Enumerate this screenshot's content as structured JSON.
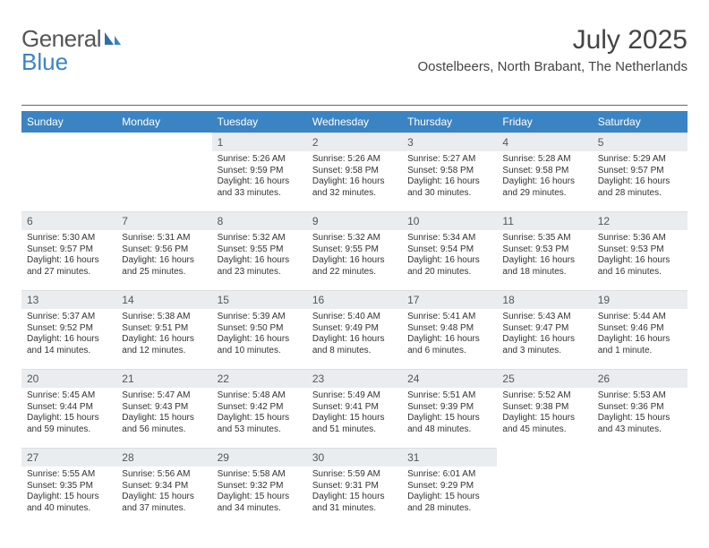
{
  "logo": {
    "word1": "General",
    "word2": "Blue"
  },
  "title": "July 2025",
  "location": "Oostelbeers, North Brabant, The Netherlands",
  "colors": {
    "header_bg": "#3b84c4",
    "daynum_bg": "#e9edf0",
    "text": "#333333",
    "rule": "#666666"
  },
  "weekdays": [
    "Sunday",
    "Monday",
    "Tuesday",
    "Wednesday",
    "Thursday",
    "Friday",
    "Saturday"
  ],
  "weeks": [
    [
      {
        "n": "",
        "sr": "",
        "ss": "",
        "dl": ""
      },
      {
        "n": "",
        "sr": "",
        "ss": "",
        "dl": ""
      },
      {
        "n": "1",
        "sr": "Sunrise: 5:26 AM",
        "ss": "Sunset: 9:59 PM",
        "dl": "Daylight: 16 hours and 33 minutes."
      },
      {
        "n": "2",
        "sr": "Sunrise: 5:26 AM",
        "ss": "Sunset: 9:58 PM",
        "dl": "Daylight: 16 hours and 32 minutes."
      },
      {
        "n": "3",
        "sr": "Sunrise: 5:27 AM",
        "ss": "Sunset: 9:58 PM",
        "dl": "Daylight: 16 hours and 30 minutes."
      },
      {
        "n": "4",
        "sr": "Sunrise: 5:28 AM",
        "ss": "Sunset: 9:58 PM",
        "dl": "Daylight: 16 hours and 29 minutes."
      },
      {
        "n": "5",
        "sr": "Sunrise: 5:29 AM",
        "ss": "Sunset: 9:57 PM",
        "dl": "Daylight: 16 hours and 28 minutes."
      }
    ],
    [
      {
        "n": "6",
        "sr": "Sunrise: 5:30 AM",
        "ss": "Sunset: 9:57 PM",
        "dl": "Daylight: 16 hours and 27 minutes."
      },
      {
        "n": "7",
        "sr": "Sunrise: 5:31 AM",
        "ss": "Sunset: 9:56 PM",
        "dl": "Daylight: 16 hours and 25 minutes."
      },
      {
        "n": "8",
        "sr": "Sunrise: 5:32 AM",
        "ss": "Sunset: 9:55 PM",
        "dl": "Daylight: 16 hours and 23 minutes."
      },
      {
        "n": "9",
        "sr": "Sunrise: 5:32 AM",
        "ss": "Sunset: 9:55 PM",
        "dl": "Daylight: 16 hours and 22 minutes."
      },
      {
        "n": "10",
        "sr": "Sunrise: 5:34 AM",
        "ss": "Sunset: 9:54 PM",
        "dl": "Daylight: 16 hours and 20 minutes."
      },
      {
        "n": "11",
        "sr": "Sunrise: 5:35 AM",
        "ss": "Sunset: 9:53 PM",
        "dl": "Daylight: 16 hours and 18 minutes."
      },
      {
        "n": "12",
        "sr": "Sunrise: 5:36 AM",
        "ss": "Sunset: 9:53 PM",
        "dl": "Daylight: 16 hours and 16 minutes."
      }
    ],
    [
      {
        "n": "13",
        "sr": "Sunrise: 5:37 AM",
        "ss": "Sunset: 9:52 PM",
        "dl": "Daylight: 16 hours and 14 minutes."
      },
      {
        "n": "14",
        "sr": "Sunrise: 5:38 AM",
        "ss": "Sunset: 9:51 PM",
        "dl": "Daylight: 16 hours and 12 minutes."
      },
      {
        "n": "15",
        "sr": "Sunrise: 5:39 AM",
        "ss": "Sunset: 9:50 PM",
        "dl": "Daylight: 16 hours and 10 minutes."
      },
      {
        "n": "16",
        "sr": "Sunrise: 5:40 AM",
        "ss": "Sunset: 9:49 PM",
        "dl": "Daylight: 16 hours and 8 minutes."
      },
      {
        "n": "17",
        "sr": "Sunrise: 5:41 AM",
        "ss": "Sunset: 9:48 PM",
        "dl": "Daylight: 16 hours and 6 minutes."
      },
      {
        "n": "18",
        "sr": "Sunrise: 5:43 AM",
        "ss": "Sunset: 9:47 PM",
        "dl": "Daylight: 16 hours and 3 minutes."
      },
      {
        "n": "19",
        "sr": "Sunrise: 5:44 AM",
        "ss": "Sunset: 9:46 PM",
        "dl": "Daylight: 16 hours and 1 minute."
      }
    ],
    [
      {
        "n": "20",
        "sr": "Sunrise: 5:45 AM",
        "ss": "Sunset: 9:44 PM",
        "dl": "Daylight: 15 hours and 59 minutes."
      },
      {
        "n": "21",
        "sr": "Sunrise: 5:47 AM",
        "ss": "Sunset: 9:43 PM",
        "dl": "Daylight: 15 hours and 56 minutes."
      },
      {
        "n": "22",
        "sr": "Sunrise: 5:48 AM",
        "ss": "Sunset: 9:42 PM",
        "dl": "Daylight: 15 hours and 53 minutes."
      },
      {
        "n": "23",
        "sr": "Sunrise: 5:49 AM",
        "ss": "Sunset: 9:41 PM",
        "dl": "Daylight: 15 hours and 51 minutes."
      },
      {
        "n": "24",
        "sr": "Sunrise: 5:51 AM",
        "ss": "Sunset: 9:39 PM",
        "dl": "Daylight: 15 hours and 48 minutes."
      },
      {
        "n": "25",
        "sr": "Sunrise: 5:52 AM",
        "ss": "Sunset: 9:38 PM",
        "dl": "Daylight: 15 hours and 45 minutes."
      },
      {
        "n": "26",
        "sr": "Sunrise: 5:53 AM",
        "ss": "Sunset: 9:36 PM",
        "dl": "Daylight: 15 hours and 43 minutes."
      }
    ],
    [
      {
        "n": "27",
        "sr": "Sunrise: 5:55 AM",
        "ss": "Sunset: 9:35 PM",
        "dl": "Daylight: 15 hours and 40 minutes."
      },
      {
        "n": "28",
        "sr": "Sunrise: 5:56 AM",
        "ss": "Sunset: 9:34 PM",
        "dl": "Daylight: 15 hours and 37 minutes."
      },
      {
        "n": "29",
        "sr": "Sunrise: 5:58 AM",
        "ss": "Sunset: 9:32 PM",
        "dl": "Daylight: 15 hours and 34 minutes."
      },
      {
        "n": "30",
        "sr": "Sunrise: 5:59 AM",
        "ss": "Sunset: 9:31 PM",
        "dl": "Daylight: 15 hours and 31 minutes."
      },
      {
        "n": "31",
        "sr": "Sunrise: 6:01 AM",
        "ss": "Sunset: 9:29 PM",
        "dl": "Daylight: 15 hours and 28 minutes."
      },
      {
        "n": "",
        "sr": "",
        "ss": "",
        "dl": ""
      },
      {
        "n": "",
        "sr": "",
        "ss": "",
        "dl": ""
      }
    ]
  ]
}
